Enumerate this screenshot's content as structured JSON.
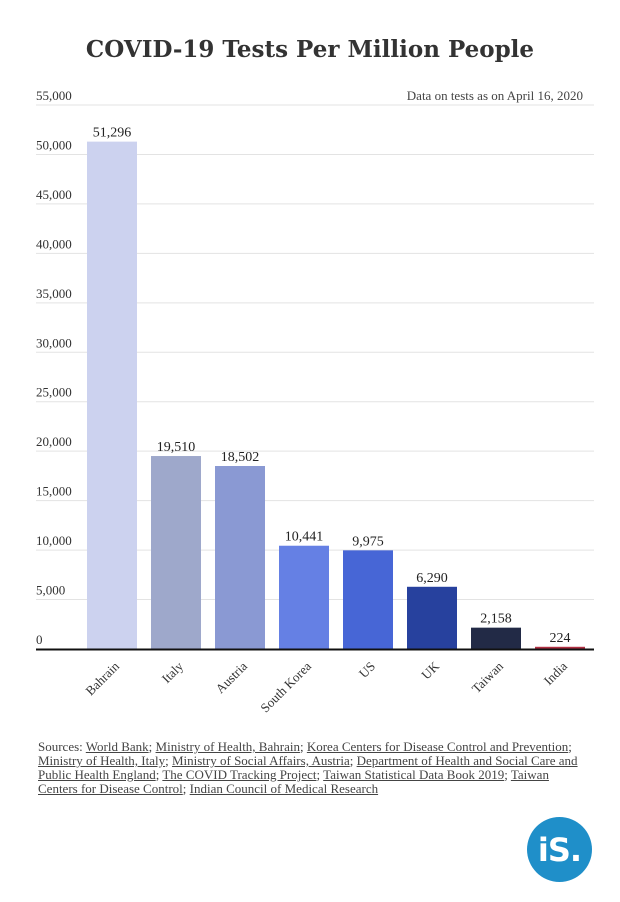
{
  "chart_data": {
    "type": "bar",
    "title": "COVID-19 Tests Per Million People",
    "note": "Data on tests as on April 16, 2020",
    "categories": [
      "Bahrain",
      "Italy",
      "Austria",
      "South Korea",
      "US",
      "UK",
      "Taiwan",
      "India"
    ],
    "values": [
      51296,
      19510,
      18502,
      10441,
      9975,
      6290,
      2158,
      224
    ],
    "value_labels": [
      "51,296",
      "19,510",
      "18,502",
      "10,441",
      "9,975",
      "6,290",
      "2,158",
      "224"
    ],
    "colors": [
      "#ccd2ef",
      "#9ea8cb",
      "#8a99d3",
      "#6580e4",
      "#4766d6",
      "#27419e",
      "#222a46",
      "#b13043"
    ],
    "yticks": [
      0,
      5000,
      10000,
      15000,
      20000,
      25000,
      30000,
      35000,
      40000,
      45000,
      50000,
      55000
    ],
    "ytick_labels": [
      "0",
      "5,000",
      "10,000",
      "15,000",
      "20,000",
      "25,000",
      "30,000",
      "35,000",
      "40,000",
      "45,000",
      "50,000",
      "55,000"
    ],
    "ylim": [
      0,
      55000
    ],
    "grid": true
  },
  "sources": {
    "prefix": "Sources:",
    "items": [
      "World Bank",
      "Ministry of Health, Bahrain",
      "Korea Centers for Disease Control and Prevention",
      "Ministry of Health, Italy",
      "Ministry of Social Affairs, Austria",
      "Department of Health and Social Care and Public Health England",
      "The COVID Tracking Project",
      "Taiwan Statistical Data Book 2019",
      "Taiwan Centers for Disease Control",
      "Indian Council of Medical Research"
    ]
  },
  "logo": {
    "text": "iS."
  }
}
